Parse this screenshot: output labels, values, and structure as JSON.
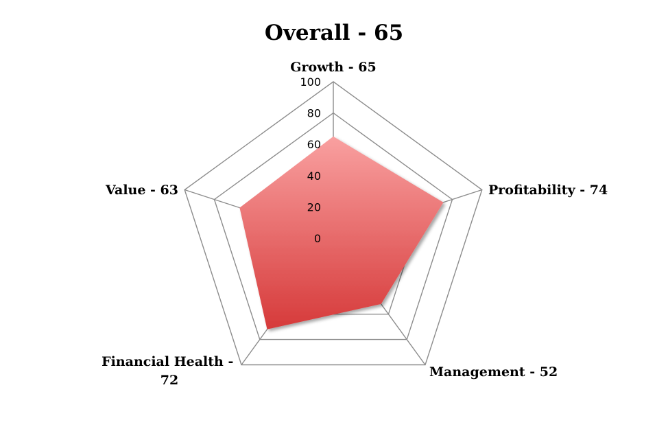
{
  "chart_data": {
    "type": "radar",
    "title": "Overall - 65",
    "categories": [
      "Growth - 65",
      "Profitability - 74",
      "Management - 52",
      "Financial Health - 72",
      "Value - 63"
    ],
    "series": [
      {
        "values": [
          65,
          74,
          52,
          72,
          63
        ]
      }
    ],
    "r_range": [
      0,
      100
    ],
    "r_ticks": [
      "0",
      "20",
      "40",
      "60",
      "80",
      "100"
    ],
    "grid": true,
    "legend": "none",
    "colors": {
      "fill_top": "#f9a0a0",
      "fill_bottom": "#d63a3a",
      "grid": "#8c8c8c",
      "text": "#000000"
    }
  }
}
